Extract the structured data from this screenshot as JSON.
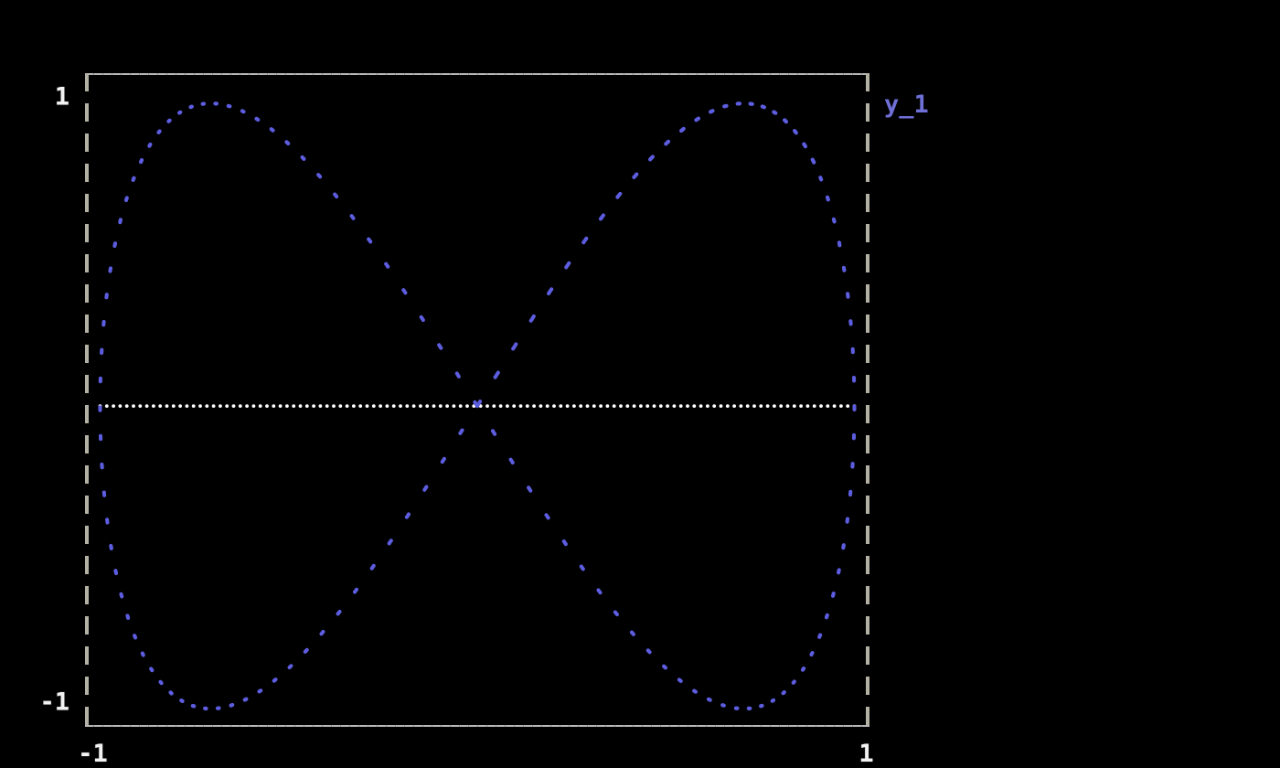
{
  "background": "#000000",
  "chart_data": {
    "type": "scatter",
    "title": "",
    "description": "Lissajous figure x=sin(t), y=sin(2t) drawn as round blue dots on a black background, with a dotted white horizontal zero line across the plot",
    "legend": {
      "label": "y_1",
      "color": "#6f6fd8",
      "position": "outside-top-right"
    },
    "axes": {
      "xlim": [
        -1.04,
        1.04
      ],
      "ylim": [
        -1.06,
        1.1
      ],
      "x_ticks": [
        {
          "value": -1,
          "label": "-1"
        },
        {
          "value": 1,
          "label": "1"
        }
      ],
      "y_ticks": [
        {
          "value": 1,
          "label": "1"
        },
        {
          "value": -1,
          "label": "-1"
        }
      ],
      "grid": false,
      "tick_label_color": "#f2f2f2",
      "frame": {
        "line_color": "#b4b4b4",
        "tick_notch_color": "#8d8d8d",
        "dash_color": "#b3b0a4",
        "top_bottom_style": "solid",
        "left_right_style": "dashed"
      }
    },
    "series": [
      {
        "name": "y_1",
        "kind": "parametric-scatter",
        "color": "#5d5de0",
        "marker": "round-dot",
        "marker_radius": 2.1,
        "x_of_t": {
          "fn": "sin",
          "freq": 1
        },
        "y_of_t": {
          "fn": "sin",
          "freq": 2
        },
        "t_min": 0,
        "t_max": 20,
        "samples": 420,
        "x_range": [
          -1,
          1
        ],
        "y_range": [
          -1,
          1
        ],
        "crossing_point": [
          0,
          0
        ],
        "extrema_note": "y=1 at x=-0.707 and x=0.707; y=-1 at x=-0.707 and x=0.707; vertical tangents at x=-1 and x=1"
      },
      {
        "name": "zero-line",
        "kind": "horizontal-dotted-line",
        "color": "#ffffff",
        "marker": "square-dot",
        "marker_radius": 1.9,
        "y": 0,
        "x_min": -1,
        "x_max": 1,
        "samples": 114
      }
    ]
  }
}
